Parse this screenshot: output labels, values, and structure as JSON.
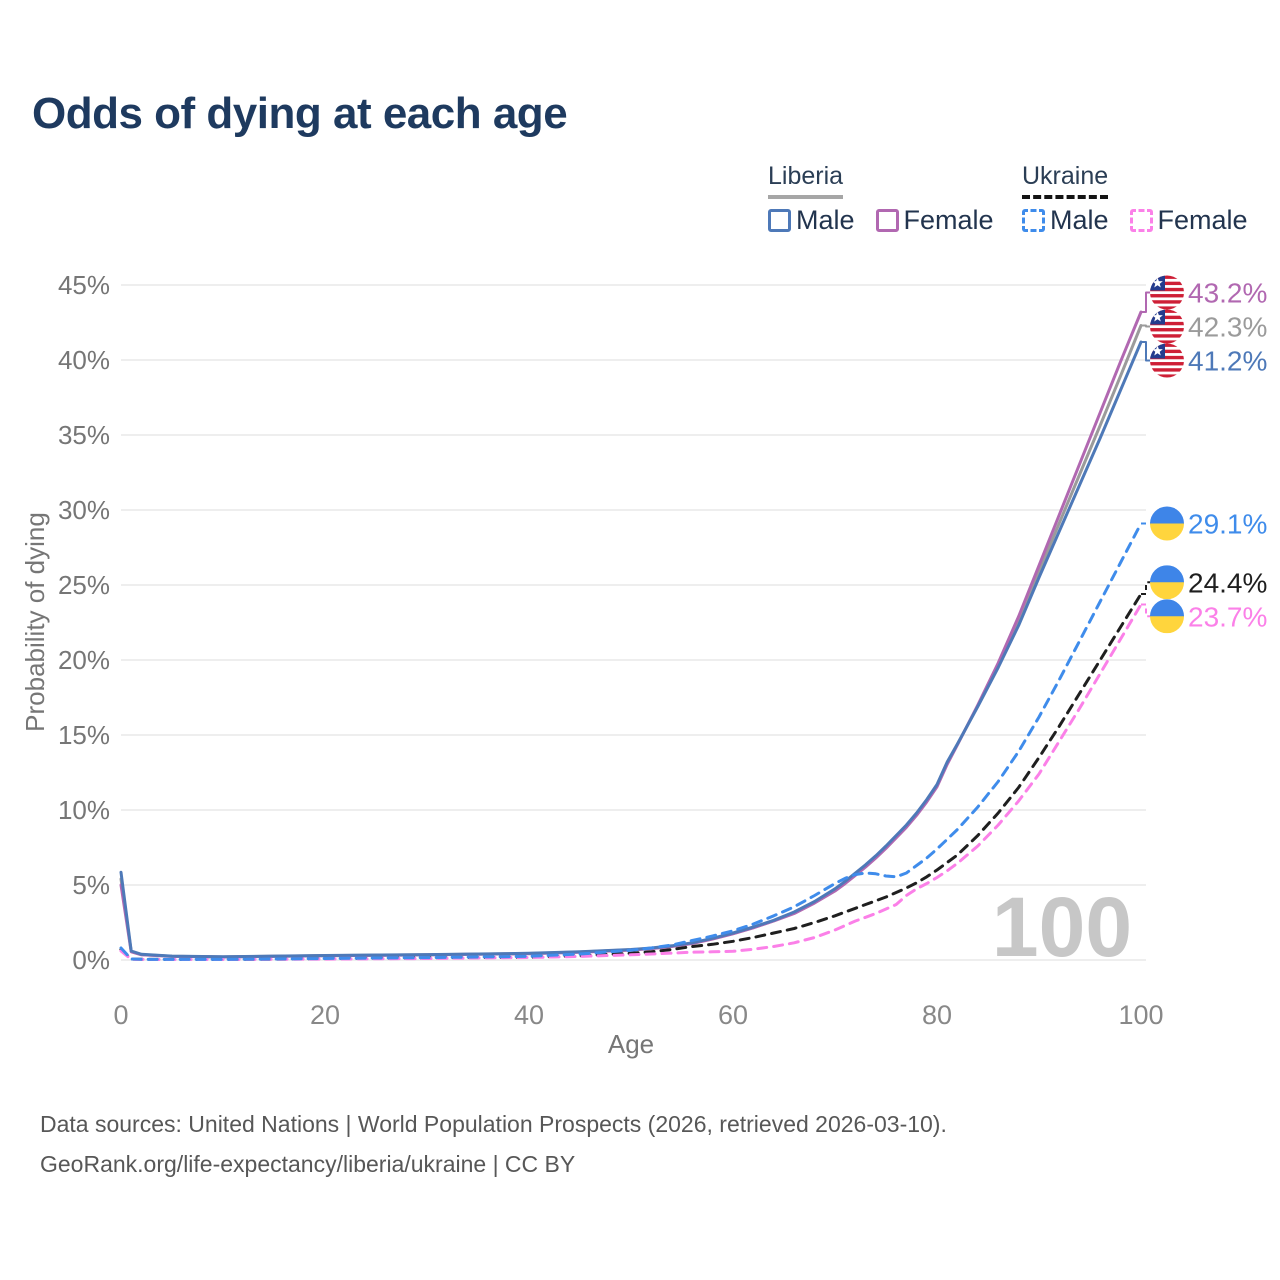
{
  "chart_data": {
    "type": "line",
    "title": "Odds of dying at each age",
    "xlabel": "Age",
    "ylabel": "Probability of dying",
    "xlim": [
      0,
      100
    ],
    "ylim_pct": [
      0,
      45
    ],
    "grid": "horizontal-only",
    "legend_position": "top-right",
    "x": [
      0,
      1,
      2,
      5,
      10,
      15,
      20,
      25,
      30,
      35,
      40,
      45,
      50,
      52,
      54,
      56,
      58,
      60,
      62,
      64,
      66,
      68,
      70,
      71,
      72,
      73,
      74,
      75,
      76,
      77,
      78,
      79,
      80,
      81,
      82,
      84,
      86,
      88,
      90,
      92,
      94,
      96,
      98,
      100
    ],
    "series": [
      {
        "id": "liberia-both",
        "name": "Liberia Both sexes",
        "country": "Liberia",
        "sex": "Both",
        "color": "#9B9B9B",
        "label_color": "#9B9B9B",
        "dash": false,
        "flag": "liberia",
        "end_label": "42.3%",
        "values": [
          5.4,
          0.58,
          0.36,
          0.25,
          0.21,
          0.25,
          0.29,
          0.32,
          0.35,
          0.39,
          0.43,
          0.53,
          0.68,
          0.78,
          0.92,
          1.12,
          1.42,
          1.77,
          2.17,
          2.62,
          3.15,
          3.85,
          4.67,
          5.17,
          5.72,
          6.27,
          6.87,
          7.52,
          8.22,
          8.92,
          9.72,
          10.62,
          11.62,
          13.12,
          14.37,
          16.95,
          19.65,
          22.6,
          25.9,
          29.15,
          32.4,
          35.65,
          38.95,
          42.3
        ]
      },
      {
        "id": "liberia-female",
        "name": "Liberia Female",
        "country": "Liberia",
        "sex": "Female",
        "color": "#B168B1",
        "label_color": "#B168B1",
        "dash": false,
        "flag": "liberia",
        "end_label": "43.2%",
        "values": [
          5.0,
          0.55,
          0.35,
          0.24,
          0.2,
          0.24,
          0.28,
          0.31,
          0.34,
          0.38,
          0.42,
          0.52,
          0.66,
          0.76,
          0.9,
          1.1,
          1.4,
          1.75,
          2.15,
          2.6,
          3.1,
          3.8,
          4.6,
          5.1,
          5.65,
          6.2,
          6.8,
          7.45,
          8.15,
          8.85,
          9.65,
          10.55,
          11.55,
          13.05,
          14.35,
          17.0,
          19.8,
          22.9,
          26.3,
          29.7,
          33.1,
          36.5,
          39.9,
          43.2
        ]
      },
      {
        "id": "liberia-male",
        "name": "Liberia Male",
        "country": "Liberia",
        "sex": "Male",
        "color": "#4E79B8",
        "label_color": "#4E79B8",
        "dash": false,
        "flag": "liberia",
        "end_label": "41.2%",
        "values": [
          5.85,
          0.6,
          0.38,
          0.26,
          0.22,
          0.26,
          0.3,
          0.33,
          0.36,
          0.4,
          0.45,
          0.55,
          0.7,
          0.8,
          0.95,
          1.15,
          1.45,
          1.8,
          2.2,
          2.65,
          3.2,
          3.9,
          4.75,
          5.25,
          5.8,
          6.35,
          6.95,
          7.6,
          8.3,
          9.0,
          9.8,
          10.7,
          11.7,
          13.2,
          14.4,
          16.9,
          19.5,
          22.3,
          25.5,
          28.6,
          31.7,
          34.8,
          38.0,
          41.2
        ]
      },
      {
        "id": "ukraine-both",
        "name": "Ukraine Both sexes",
        "country": "Ukraine",
        "sex": "Both",
        "color": "#1F1F1F",
        "label_color": "#1F1F1F",
        "dash": true,
        "flag": "ukraine",
        "end_label": "24.4%",
        "values": [
          0.7,
          0.06,
          0.045,
          0.035,
          0.035,
          0.055,
          0.08,
          0.11,
          0.14,
          0.16,
          0.18,
          0.28,
          0.45,
          0.55,
          0.7,
          0.9,
          1.05,
          1.25,
          1.5,
          1.8,
          2.1,
          2.5,
          2.95,
          3.2,
          3.45,
          3.7,
          3.95,
          4.2,
          4.5,
          4.8,
          5.15,
          5.55,
          6.0,
          6.5,
          7.0,
          8.3,
          9.8,
          11.5,
          13.5,
          15.6,
          17.8,
          20.0,
          22.2,
          24.4
        ]
      },
      {
        "id": "ukraine-female",
        "name": "Ukraine Female",
        "country": "Ukraine",
        "sex": "Female",
        "color": "#FB80E8",
        "label_color": "#FB80E8",
        "dash": true,
        "flag": "ukraine",
        "end_label": "23.7%",
        "values": [
          0.6,
          0.05,
          0.04,
          0.03,
          0.03,
          0.045,
          0.06,
          0.08,
          0.1,
          0.14,
          0.17,
          0.24,
          0.35,
          0.4,
          0.46,
          0.52,
          0.55,
          0.58,
          0.72,
          0.9,
          1.15,
          1.5,
          2.0,
          2.3,
          2.6,
          2.85,
          3.1,
          3.4,
          3.7,
          4.3,
          4.75,
          5.1,
          5.5,
          5.95,
          6.45,
          7.6,
          9.0,
          10.6,
          12.4,
          14.6,
          16.8,
          19.1,
          21.4,
          23.7
        ]
      },
      {
        "id": "ukraine-male",
        "name": "Ukraine Male",
        "country": "Ukraine",
        "sex": "Male",
        "color": "#3F8CEB",
        "label_color": "#3F8CEB",
        "dash": true,
        "flag": "ukraine",
        "end_label": "29.1%",
        "values": [
          0.8,
          0.07,
          0.05,
          0.04,
          0.04,
          0.07,
          0.1,
          0.13,
          0.16,
          0.2,
          0.25,
          0.4,
          0.65,
          0.8,
          1.0,
          1.3,
          1.6,
          1.95,
          2.4,
          2.95,
          3.55,
          4.3,
          5.1,
          5.45,
          5.7,
          5.8,
          5.75,
          5.6,
          5.55,
          5.8,
          6.3,
          6.8,
          7.4,
          8.05,
          8.7,
          10.2,
          11.9,
          13.9,
          16.2,
          18.7,
          21.3,
          23.9,
          26.5,
          29.1
        ]
      }
    ]
  },
  "axes": {
    "x_ticks": [
      0,
      20,
      40,
      60,
      80,
      100
    ],
    "y_ticks": [
      "0%",
      "5%",
      "10%",
      "15%",
      "20%",
      "25%",
      "30%",
      "35%",
      "40%",
      "45%"
    ]
  },
  "legend": {
    "groups": [
      {
        "title": "Liberia",
        "underline_style": "solid",
        "underline_color": "#A6A6A6",
        "items": [
          {
            "label": "Male"
          },
          {
            "label": "Female"
          }
        ]
      },
      {
        "title": "Ukraine",
        "underline_style": "dashed",
        "underline_color": "#141414",
        "items": [
          {
            "label": "Male"
          },
          {
            "label": "Female"
          }
        ]
      }
    ]
  },
  "watermark": "100",
  "flags": {
    "liberia": {
      "stripe": "#CE1F36",
      "canton": "#243C8E",
      "star": "#FFFFFF"
    },
    "ukraine": {
      "top": "#3E85E8",
      "bottom": "#FFD53D"
    }
  },
  "footer": {
    "line1": "Data sources: United Nations | World Population Prospects (2026, retrieved 2026-03-10).",
    "line2": "GeoRank.org/life-expectancy/liberia/ukraine | CC BY"
  }
}
